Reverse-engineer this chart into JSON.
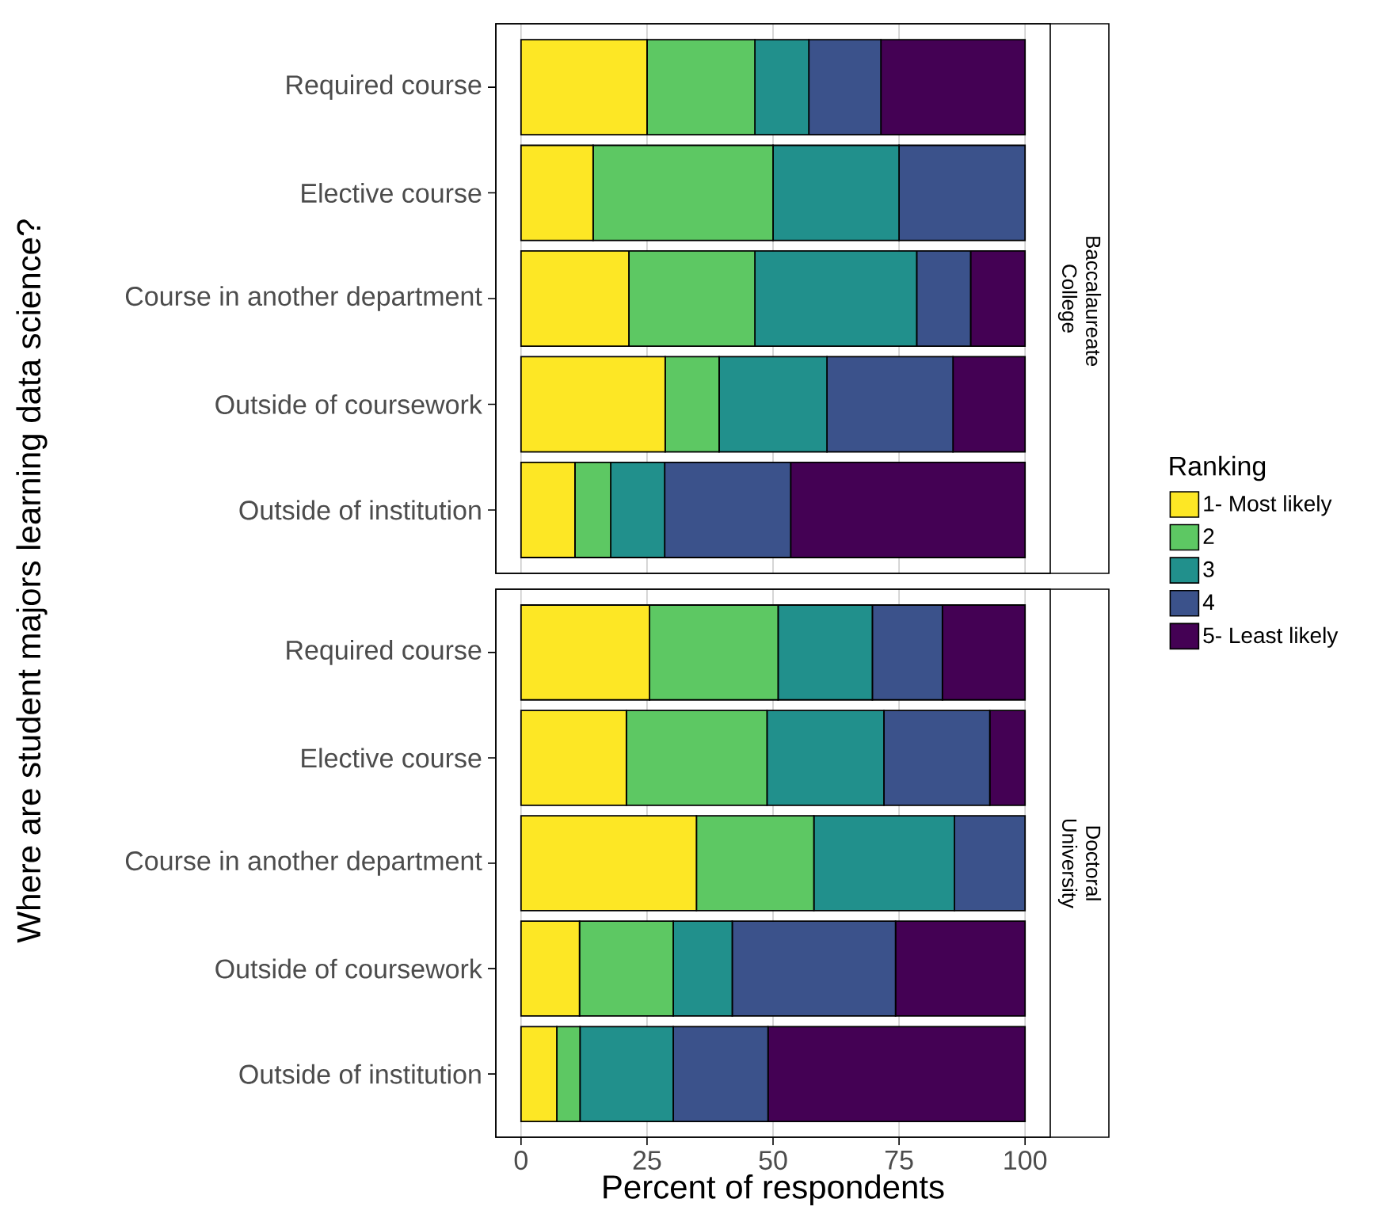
{
  "chart_data": [
    {
      "type": "bar",
      "orientation": "horizontal",
      "stacked": true,
      "title": "Baccalaureate College",
      "ylabel": "Where are student majors learning data science?",
      "legend_title": "Ranking",
      "legend": "right",
      "grid": "x",
      "tick_labels": "y",
      "categories": [
        "Required course",
        "Elective course",
        "Course in another department",
        "Outside of coursework",
        "Outside of institution"
      ],
      "xlim": [
        -5,
        105
      ],
      "xticks": [
        0,
        25,
        50,
        75,
        100
      ],
      "series": [
        {
          "name": "1- Most likely",
          "color": "#fde725",
          "values": [
            25,
            14.3,
            21.4,
            28.6,
            10.7
          ]
        },
        {
          "name": "2",
          "color": "#5dc863",
          "values": [
            21.4,
            35.7,
            25,
            10.7,
            7.1
          ]
        },
        {
          "name": "3",
          "color": "#21908c",
          "values": [
            10.7,
            25,
            32.1,
            21.4,
            10.7
          ]
        },
        {
          "name": "4",
          "color": "#3b528b",
          "values": [
            14.3,
            25,
            10.7,
            25,
            25
          ]
        },
        {
          "name": "5- Least likely",
          "color": "#440154",
          "values": [
            28.6,
            0,
            10.8,
            14.3,
            46.5
          ]
        }
      ]
    },
    {
      "type": "bar",
      "orientation": "horizontal",
      "stacked": true,
      "title": "Doctoral University",
      "xlabel": "Percent of respondents",
      "grid": "x",
      "categories": [
        "Required course",
        "Elective course",
        "Course in another department",
        "Outside of coursework",
        "Outside of institution"
      ],
      "xlim": [
        -5,
        105
      ],
      "xticks": [
        0,
        25,
        50,
        75,
        100
      ],
      "series": [
        {
          "color": "#fde725",
          "values": [
            25.5,
            20.9,
            34.8,
            11.6,
            7.1
          ]
        },
        {
          "color": "#5dc863",
          "values": [
            25.5,
            27.9,
            23.3,
            18.6,
            4.6
          ]
        },
        {
          "color": "#21908c",
          "values": [
            18.7,
            23.2,
            27.9,
            11.7,
            18.5
          ]
        },
        {
          "color": "#3b528b",
          "values": [
            13.9,
            21.0,
            14.0,
            32.4,
            18.8
          ]
        },
        {
          "color": "#440154",
          "values": [
            16.4,
            7.0,
            0,
            25.7,
            51.0
          ]
        }
      ]
    }
  ]
}
